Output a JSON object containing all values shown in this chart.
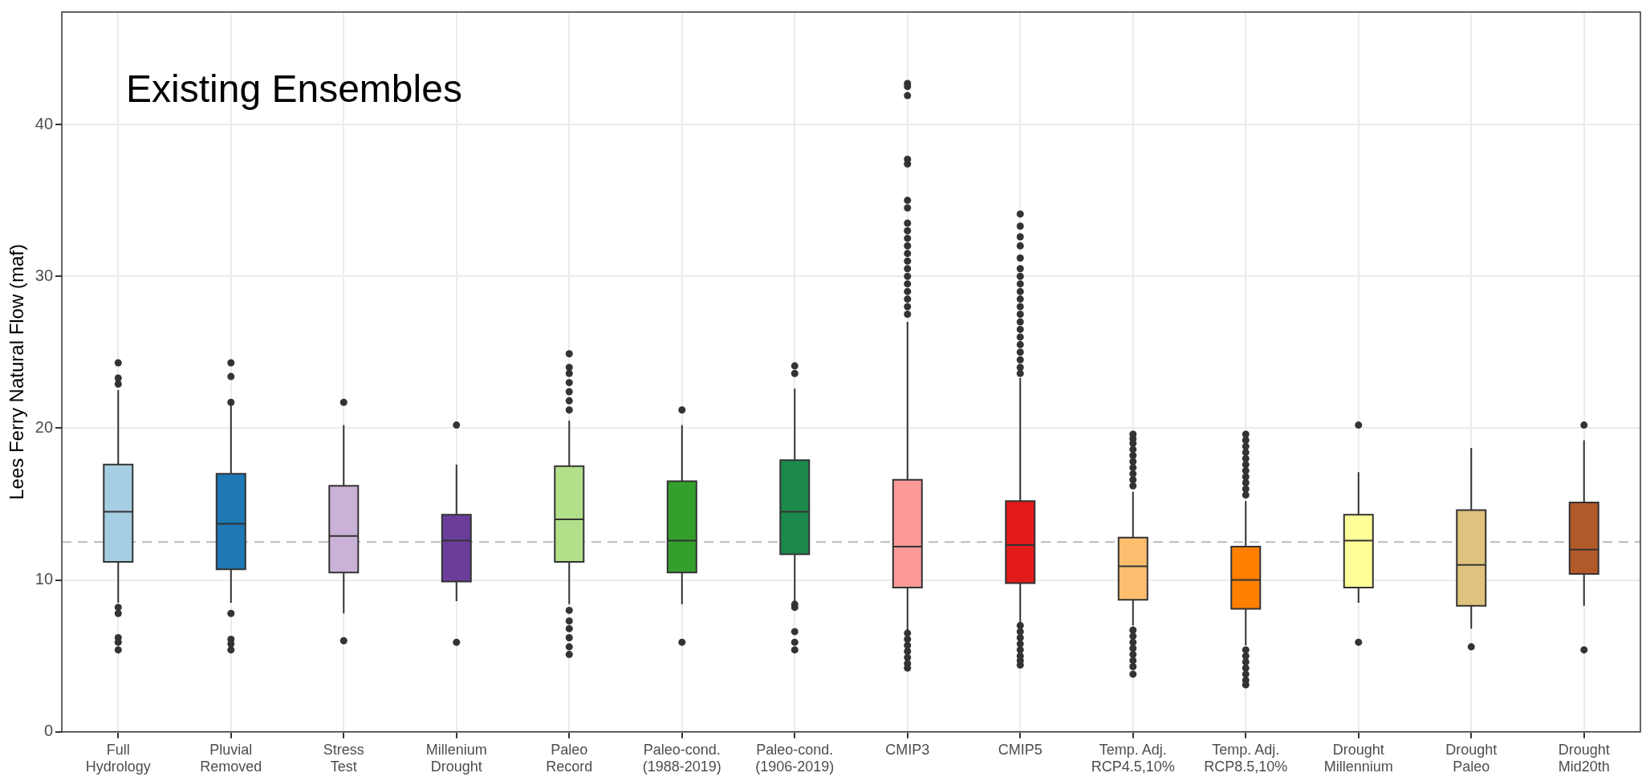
{
  "chart_data": {
    "type": "box",
    "ylabel": "Lees Ferry Natural Flow (maf)",
    "annotations": [
      "Existing Ensembles"
    ],
    "categories": [
      "Full\nHydrology",
      "Pluvial\nRemoved",
      "Stress\nTest",
      "Millenium\nDrought",
      "Paleo\nRecord",
      "Paleo-cond.\n(1988-2019)",
      "Paleo-cond.\n(1906-2019)",
      "CMIP3",
      "CMIP5",
      "Temp. Adj.\nRCP4.5,10%",
      "Temp. Adj.\nRCP8.5,10%",
      "Drought\nMillennium",
      "Drought\nPaleo",
      "Drought\nMid20th"
    ],
    "colors": [
      "#a6cee3",
      "#1f78b4",
      "#cab2d6",
      "#6a3d9a",
      "#b2df8a",
      "#33a02c",
      "#1b8a4a",
      "#fb9a99",
      "#e31a1c",
      "#fdbf6f",
      "#ff7f00",
      "#ffff99",
      "#dfc27d",
      "#b15928"
    ],
    "boxes": [
      {
        "low": 8.5,
        "q1": 11.2,
        "median": 14.5,
        "q3": 17.6,
        "high": 22.5,
        "outliers": [
          22.9,
          23.3,
          24.3,
          8.2,
          7.8,
          6.2,
          5.9,
          5.4
        ]
      },
      {
        "low": 8.5,
        "q1": 10.7,
        "median": 13.7,
        "q3": 17.0,
        "high": 21.5,
        "outliers": [
          21.7,
          23.4,
          24.3,
          7.8,
          6.1,
          5.8,
          5.4
        ]
      },
      {
        "low": 7.8,
        "q1": 10.5,
        "median": 12.9,
        "q3": 16.2,
        "high": 20.2,
        "outliers": [
          21.7,
          6.0
        ]
      },
      {
        "low": 8.6,
        "q1": 9.9,
        "median": 12.6,
        "q3": 14.3,
        "high": 17.6,
        "outliers": [
          20.2,
          5.9
        ]
      },
      {
        "low": 8.4,
        "q1": 11.2,
        "median": 14.0,
        "q3": 17.5,
        "high": 20.5,
        "outliers": [
          21.2,
          21.8,
          22.4,
          23.0,
          23.6,
          24.0,
          24.9,
          8.0,
          7.3,
          6.8,
          6.2,
          5.6,
          5.1
        ]
      },
      {
        "low": 8.4,
        "q1": 10.5,
        "median": 12.6,
        "q3": 16.5,
        "high": 20.2,
        "outliers": [
          21.2,
          5.9
        ]
      },
      {
        "low": 8.6,
        "q1": 11.7,
        "median": 14.5,
        "q3": 17.9,
        "high": 22.6,
        "outliers": [
          23.6,
          24.1,
          8.4,
          8.2,
          6.6,
          5.9,
          5.4
        ]
      },
      {
        "low": 6.7,
        "q1": 9.5,
        "median": 12.2,
        "q3": 16.6,
        "high": 27.0,
        "outliers": [
          27.5,
          28.0,
          28.5,
          29.0,
          29.5,
          30.0,
          30.5,
          31.0,
          31.5,
          32.0,
          32.5,
          33.0,
          33.5,
          34.5,
          35.0,
          37.4,
          37.7,
          41.9,
          42.5,
          42.7,
          6.5,
          6.1,
          5.7,
          5.3,
          4.9,
          4.5,
          4.2
        ]
      },
      {
        "low": 7.2,
        "q1": 9.8,
        "median": 12.3,
        "q3": 15.2,
        "high": 23.3,
        "outliers": [
          23.6,
          24.0,
          24.5,
          25.0,
          25.5,
          26.0,
          26.5,
          27.0,
          27.5,
          28.0,
          28.5,
          29.0,
          29.5,
          30.0,
          30.5,
          31.2,
          32.0,
          32.6,
          33.3,
          34.1,
          7.0,
          6.6,
          6.2,
          5.8,
          5.4,
          5.0,
          4.7,
          4.4
        ]
      },
      {
        "low": 7.0,
        "q1": 8.7,
        "median": 10.9,
        "q3": 12.8,
        "high": 15.8,
        "outliers": [
          16.2,
          16.6,
          17.0,
          17.4,
          17.8,
          18.2,
          18.6,
          19.0,
          19.3,
          19.6,
          6.7,
          6.3,
          5.9,
          5.5,
          5.1,
          4.7,
          4.3,
          3.8
        ]
      },
      {
        "low": 5.7,
        "q1": 8.1,
        "median": 10.0,
        "q3": 12.2,
        "high": 15.2,
        "outliers": [
          15.6,
          16.0,
          16.4,
          16.8,
          17.2,
          17.6,
          18.0,
          18.4,
          18.8,
          19.2,
          19.6,
          5.4,
          5.0,
          4.6,
          4.2,
          3.8,
          3.4,
          3.1
        ]
      },
      {
        "low": 8.5,
        "q1": 9.5,
        "median": 12.6,
        "q3": 14.3,
        "high": 17.1,
        "outliers": [
          20.2,
          5.9
        ]
      },
      {
        "low": 6.8,
        "q1": 8.3,
        "median": 11.0,
        "q3": 14.6,
        "high": 18.7,
        "outliers": [
          5.6
        ]
      },
      {
        "low": 8.3,
        "q1": 10.4,
        "median": 12.0,
        "q3": 15.1,
        "high": 19.2,
        "outliers": [
          20.2,
          5.4
        ]
      }
    ],
    "ylim": [
      0,
      47.4
    ],
    "yticks": [
      0,
      10,
      20,
      30,
      40
    ],
    "grid": true,
    "ref_lines": [
      {
        "axis": "y",
        "value": 12.5,
        "color": "#bbbbbb",
        "line_style": "dashed"
      }
    ]
  }
}
